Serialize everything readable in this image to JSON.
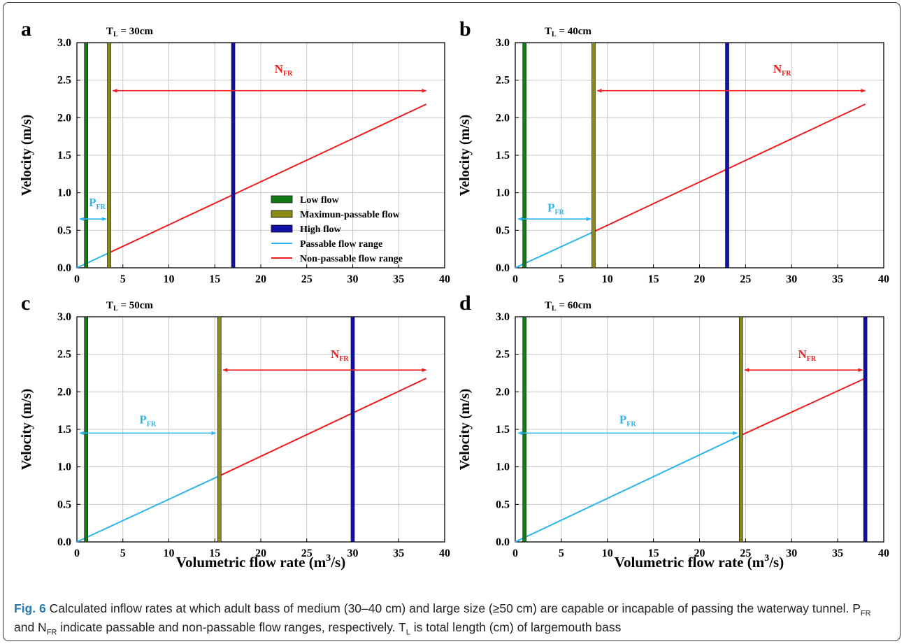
{
  "figure": {
    "xlabel_main": "Volumetric flow rate (m",
    "xlabel_sup": "3",
    "xlabel_tail": "/s)",
    "ylabel": "Velocity (m/s)",
    "pfr_main": "P",
    "nfr_main": "N",
    "fr_sub": "FR",
    "tl_main": "T",
    "tl_sub": "L"
  },
  "legend": {
    "low": "Low flow",
    "max": "Maximun-passable flow",
    "high": "High flow",
    "passable": "Passable flow range",
    "nonpassable": "Non-passable flow range"
  },
  "colors": {
    "low": "#147a14",
    "max": "#8a8a14",
    "high": "#1010a8",
    "passable": "#2bb4ef",
    "nonpassable": "#ee1c1c",
    "grid": "#c8c8c8"
  },
  "caption": {
    "label": "Fig. 6",
    "p1": " Calculated inflow rates at which adult bass of medium (30–40 cm) and large size (≥50 cm) are capable or incapable of passing the waterway tunnel. P",
    "sub1": "FR",
    "p2": " and N",
    "sub2": "FR",
    "p3": " indicate passable and non-passable flow ranges, respectively. T",
    "sub3": "L",
    "p4": " is total length (cm) of largemouth bass"
  },
  "chart_data": [
    {
      "panel": "a",
      "type": "line",
      "tl_value": " = 30cm",
      "xlim": [
        0,
        40
      ],
      "ylim": [
        0,
        3
      ],
      "xticks": [
        0,
        5,
        10,
        15,
        20,
        25,
        30,
        35,
        40
      ],
      "yticks": [
        "0.0",
        "0.5",
        "1.0",
        "1.5",
        "2.0",
        "2.5",
        "3.0"
      ],
      "low_flow": 1,
      "max_passable_flow": 3.5,
      "high_flow": 17,
      "passable_line": [
        [
          0,
          0
        ],
        [
          3.5,
          0.2
        ]
      ],
      "nonpassable_line": [
        [
          3.5,
          0.2
        ],
        [
          38,
          2.18
        ]
      ],
      "pfr_arrow": {
        "x": [
          0.3,
          3.2
        ],
        "y": 0.65
      },
      "pfr_label_at": [
        1.3,
        0.82
      ],
      "nfr_arrow": {
        "x": [
          3.9,
          38
        ],
        "y": 2.36
      },
      "nfr_label_at": [
        21.5,
        2.6
      ],
      "legend": true,
      "grid": true
    },
    {
      "panel": "b",
      "type": "line",
      "tl_value": " = 40cm",
      "xlim": [
        0,
        40
      ],
      "ylim": [
        0,
        3
      ],
      "xticks": [
        0,
        5,
        10,
        15,
        20,
        25,
        30,
        35,
        40
      ],
      "yticks": [
        "0.0",
        "0.5",
        "1.0",
        "1.5",
        "2.0",
        "2.5",
        "3.0"
      ],
      "low_flow": 1,
      "max_passable_flow": 8.5,
      "high_flow": 23,
      "passable_line": [
        [
          0,
          0
        ],
        [
          8.5,
          0.48
        ]
      ],
      "nonpassable_line": [
        [
          8.5,
          0.48
        ],
        [
          38,
          2.18
        ]
      ],
      "pfr_arrow": {
        "x": [
          0.3,
          8.2
        ],
        "y": 0.65
      },
      "pfr_label_at": [
        3.5,
        0.75
      ],
      "nfr_arrow": {
        "x": [
          8.9,
          38
        ],
        "y": 2.36
      },
      "nfr_label_at": [
        28,
        2.6
      ],
      "legend": false,
      "grid": true
    },
    {
      "panel": "c",
      "type": "line",
      "tl_value": " = 50cm",
      "xlim": [
        0,
        40
      ],
      "ylim": [
        0,
        3
      ],
      "xticks": [
        0,
        5,
        10,
        15,
        20,
        25,
        30,
        35,
        40
      ],
      "yticks": [
        "0.0",
        "0.5",
        "1.0",
        "1.5",
        "2.0",
        "2.5",
        "3.0"
      ],
      "low_flow": 1,
      "max_passable_flow": 15.5,
      "high_flow": 30,
      "passable_line": [
        [
          0,
          0
        ],
        [
          15.5,
          0.88
        ]
      ],
      "nonpassable_line": [
        [
          15.5,
          0.88
        ],
        [
          38,
          2.18
        ]
      ],
      "pfr_arrow": {
        "x": [
          0.3,
          15.1
        ],
        "y": 1.45
      },
      "pfr_label_at": [
        6.8,
        1.58
      ],
      "nfr_arrow": {
        "x": [
          15.9,
          38
        ],
        "y": 2.29
      },
      "nfr_label_at": [
        27.6,
        2.45
      ],
      "legend": false,
      "grid": true
    },
    {
      "panel": "d",
      "type": "line",
      "tl_value": " = 60cm",
      "xlim": [
        0,
        40
      ],
      "ylim": [
        0,
        3
      ],
      "xticks": [
        0,
        5,
        10,
        15,
        20,
        25,
        30,
        35,
        40
      ],
      "yticks": [
        "0.0",
        "0.5",
        "1.0",
        "1.5",
        "2.0",
        "2.5",
        "3.0"
      ],
      "low_flow": 1,
      "max_passable_flow": 24.5,
      "high_flow": 38,
      "passable_line": [
        [
          0,
          0
        ],
        [
          24.5,
          1.42
        ]
      ],
      "nonpassable_line": [
        [
          24.5,
          1.42
        ],
        [
          38,
          2.18
        ]
      ],
      "pfr_arrow": {
        "x": [
          0.3,
          24.1
        ],
        "y": 1.45
      },
      "pfr_label_at": [
        11.3,
        1.58
      ],
      "nfr_arrow": {
        "x": [
          24.9,
          37.7
        ],
        "y": 2.29
      },
      "nfr_label_at": [
        30.7,
        2.45
      ],
      "legend": false,
      "grid": true
    }
  ]
}
